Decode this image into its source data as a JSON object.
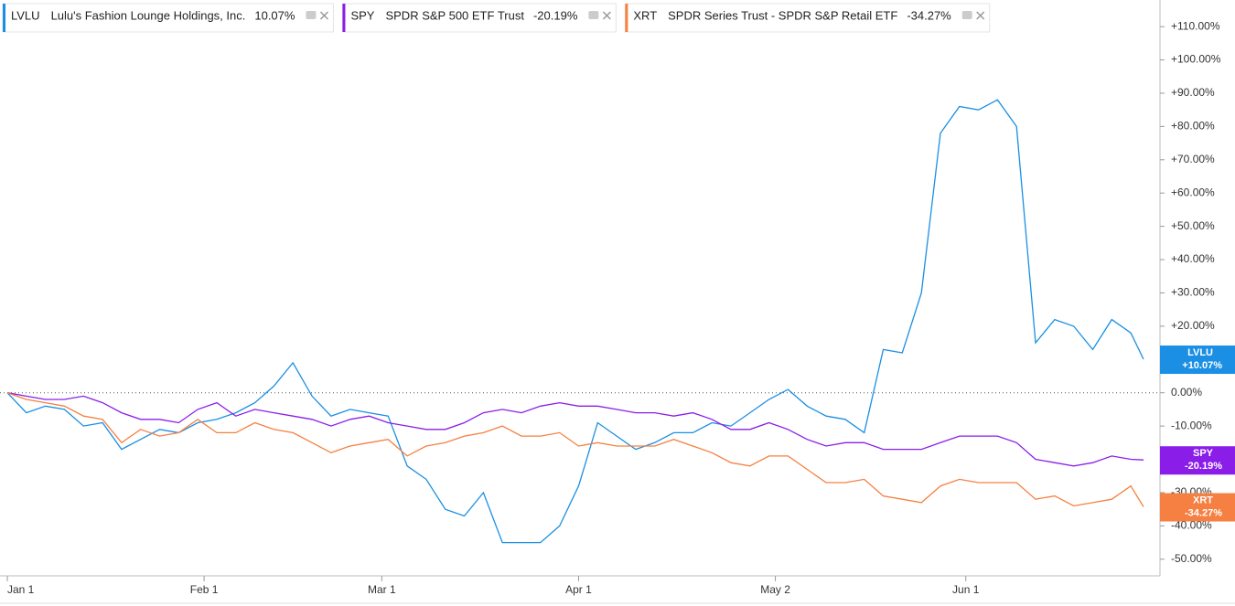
{
  "chart_data": {
    "type": "line",
    "x": [
      0,
      3,
      6,
      9,
      12,
      15,
      18,
      21,
      24,
      27,
      30,
      33,
      36,
      39,
      42,
      45,
      48,
      51,
      54,
      57,
      60,
      63,
      66,
      69,
      72,
      75,
      78,
      81,
      84,
      87,
      90,
      93,
      96,
      99,
      102,
      105,
      108,
      111,
      114,
      117,
      120,
      123,
      126,
      129,
      132,
      135,
      138,
      141,
      144,
      147,
      150,
      153,
      156,
      159,
      162,
      165,
      168,
      171,
      174,
      177,
      179
    ],
    "xlim": [
      0,
      179
    ],
    "xticks": [
      {
        "value": 0,
        "label": "Jan 1"
      },
      {
        "value": 31,
        "label": "Feb 1"
      },
      {
        "value": 59,
        "label": "Mar 1"
      },
      {
        "value": 90,
        "label": "Apr 1"
      },
      {
        "value": 121,
        "label": "May 2"
      },
      {
        "value": 151,
        "label": "Jun 1"
      }
    ],
    "ylim": [
      -55,
      118
    ],
    "yticks": [
      {
        "value": 110,
        "label": "+110.00%"
      },
      {
        "value": 100,
        "label": "+100.00%"
      },
      {
        "value": 90,
        "label": "+90.00%"
      },
      {
        "value": 80,
        "label": "+80.00%"
      },
      {
        "value": 70,
        "label": "+70.00%"
      },
      {
        "value": 60,
        "label": "+60.00%"
      },
      {
        "value": 50,
        "label": "+50.00%"
      },
      {
        "value": 40,
        "label": "+40.00%"
      },
      {
        "value": 30,
        "label": "+30.00%"
      },
      {
        "value": 20,
        "label": "+20.00%"
      },
      {
        "value": 10,
        "label": "+10.00%"
      },
      {
        "value": 0,
        "label": "0.00%"
      },
      {
        "value": -10,
        "label": "-10.00%"
      },
      {
        "value": -20,
        "label": "-20.00%"
      },
      {
        "value": -30,
        "label": "-30.00%"
      },
      {
        "value": -40,
        "label": "-40.00%"
      },
      {
        "value": -50,
        "label": "-50.00%"
      }
    ],
    "series": [
      {
        "name": "LVLU",
        "full_name": "Lulu's Fashion Lounge Holdings, Inc.",
        "legend_value": "10.07%",
        "end_label": "+10.07%",
        "color": "#1a8fe3",
        "values": [
          0,
          -6,
          -4,
          -5,
          -10,
          -9,
          -17,
          -14,
          -11,
          -12,
          -9,
          -8,
          -6,
          -3,
          2,
          9,
          -1,
          -7,
          -5,
          -6,
          -7,
          -22,
          -26,
          -35,
          -37,
          -30,
          -45,
          -45,
          -45,
          -40,
          -28,
          -9,
          -13,
          -17,
          -15,
          -12,
          -12,
          -9,
          -10,
          -6,
          -2,
          1,
          -4,
          -7,
          -8,
          -12,
          13,
          12,
          30,
          78,
          86,
          85,
          88,
          80,
          15,
          22,
          20,
          13,
          22,
          18,
          10.07
        ]
      },
      {
        "name": "SPY",
        "full_name": "SPDR S&P 500 ETF Trust",
        "legend_value": "-20.19%",
        "end_label": "-20.19%",
        "color": "#8a1ee8",
        "values": [
          0,
          -1,
          -2,
          -2,
          -1,
          -3,
          -6,
          -8,
          -8,
          -9,
          -5,
          -3,
          -7,
          -5,
          -6,
          -7,
          -8,
          -10,
          -8,
          -7,
          -9,
          -10,
          -11,
          -11,
          -9,
          -6,
          -5,
          -6,
          -4,
          -3,
          -4,
          -4,
          -5,
          -6,
          -6,
          -7,
          -6,
          -8,
          -11,
          -11,
          -9,
          -11,
          -14,
          -16,
          -15,
          -15,
          -17,
          -17,
          -17,
          -15,
          -13,
          -13,
          -13,
          -15,
          -20,
          -21,
          -22,
          -21,
          -19,
          -20,
          -20.19
        ]
      },
      {
        "name": "XRT",
        "full_name": "SPDR Series Trust - SPDR S&P Retail ETF",
        "legend_value": "-34.27%",
        "end_label": "-34.27%",
        "color": "#f58042",
        "values": [
          0,
          -2,
          -3,
          -4,
          -7,
          -8,
          -15,
          -11,
          -13,
          -12,
          -8,
          -12,
          -12,
          -9,
          -11,
          -12,
          -15,
          -18,
          -16,
          -15,
          -14,
          -19,
          -16,
          -15,
          -13,
          -12,
          -10,
          -13,
          -13,
          -12,
          -16,
          -15,
          -16,
          -16,
          -16,
          -14,
          -16,
          -18,
          -21,
          -22,
          -19,
          -19,
          -23,
          -27,
          -27,
          -26,
          -31,
          -32,
          -33,
          -28,
          -26,
          -27,
          -27,
          -27,
          -32,
          -31,
          -34,
          -33,
          -32,
          -28,
          -34.27
        ]
      }
    ]
  }
}
